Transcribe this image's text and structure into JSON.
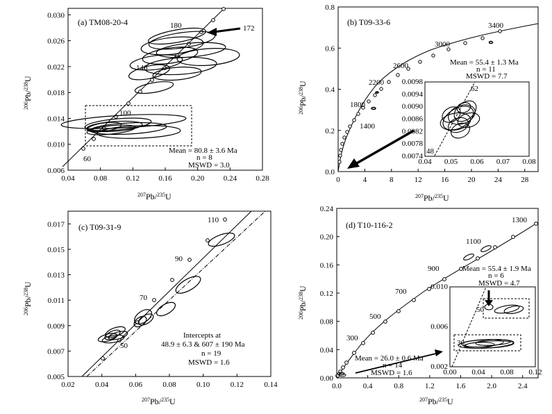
{
  "figure": {
    "panels": [
      {
        "id": "a",
        "label": "(a) TM08-20-4",
        "xaxis": {
          "label": "207Pb/235U",
          "min": 0.04,
          "max": 0.28,
          "ticks": [
            0.04,
            0.08,
            0.12,
            0.16,
            0.2,
            0.24,
            0.28
          ],
          "tick_labels": [
            "0.04",
            "0.08",
            "0.12",
            "0.16",
            "0.20",
            "0.24",
            "0.28"
          ]
        },
        "yaxis": {
          "label": "206Pb/238U",
          "min": 0.006,
          "max": 0.031,
          "ticks": [
            0.006,
            0.01,
            0.014,
            0.018,
            0.022,
            0.026,
            0.03
          ],
          "tick_labels": [
            "0.006",
            "0.010",
            "0.014",
            "0.018",
            "0.022",
            "0.026",
            "0.030"
          ]
        },
        "concordia_ages": [
          "60",
          "100",
          "140",
          "180"
        ],
        "annotations": [
          "172"
        ],
        "stats": [
          "Mean = 80.8 ± 3.6 Ma",
          "n = 8",
          "MSWD = 3.0"
        ]
      },
      {
        "id": "b",
        "label": "(b) T09-33-6",
        "xaxis": {
          "label": "207Pb/235U",
          "min": 0,
          "max": 30,
          "ticks": [
            0,
            4,
            8,
            12,
            16,
            20,
            24,
            28
          ],
          "tick_labels": [
            "0",
            "4",
            "8",
            "12",
            "16",
            "20",
            "24",
            "28"
          ]
        },
        "yaxis": {
          "label": "206Pb/238U",
          "min": 0,
          "max": 0.8,
          "ticks": [
            0,
            0.2,
            0.4,
            0.6,
            0.8
          ],
          "tick_labels": [
            "0.0",
            "0.2",
            "0.4",
            "0.6",
            "0.8"
          ]
        },
        "concordia_ages": [
          "1400",
          "1800",
          "2200",
          "2600",
          "3000",
          "3400"
        ],
        "stats": [
          "Mean = 55.4 ± 1.3  Ma",
          "n = 11",
          "MSWD = 7.7"
        ],
        "inset": {
          "xaxis": {
            "min": 0.04,
            "max": 0.08,
            "tick_labels": [
              "0.04",
              "0.05",
              "0.06",
              "0.07",
              "0.08"
            ]
          },
          "yaxis": {
            "min": 0.0074,
            "max": 0.0098,
            "tick_labels": [
              "0.0074",
              "0.0078",
              "0.0082",
              "0.0086",
              "0.0090",
              "0.0094",
              "0.0098"
            ]
          },
          "ages": [
            "48",
            "62"
          ]
        }
      },
      {
        "id": "c",
        "label": "(c) T09-31-9",
        "xaxis": {
          "label": "207Pb/235U",
          "min": 0.02,
          "max": 0.14,
          "ticks": [
            0.02,
            0.04,
            0.06,
            0.08,
            0.1,
            0.12,
            0.14
          ],
          "tick_labels": [
            "0.02",
            "0.04",
            "0.06",
            "0.08",
            "0.10",
            "0.12",
            "0.14"
          ]
        },
        "yaxis": {
          "label": "206Pb/238U",
          "min": 0.005,
          "max": 0.018,
          "ticks": [
            0.005,
            0.007,
            0.009,
            0.011,
            0.013,
            0.015,
            0.017
          ],
          "tick_labels": [
            "0.005",
            "0.007",
            "0.009",
            "0.011",
            "0.013",
            "0.015",
            "0.017"
          ]
        },
        "concordia_ages": [
          "50",
          "70",
          "90",
          "110"
        ],
        "stats": [
          "Intercepts at",
          "48.9 ± 6.3 & 607 ± 190 Ma",
          "n = 19",
          "MSWD = 1.6"
        ]
      },
      {
        "id": "d",
        "label": "(d) T10-116-2",
        "xaxis": {
          "label": "207Pb/235U",
          "min": 0,
          "max": 2.6,
          "ticks": [
            0,
            0.4,
            0.8,
            1.2,
            1.6,
            2.0,
            2.4
          ],
          "tick_labels": [
            "0.0",
            "0.4",
            "0.8",
            "1.2",
            "1.6",
            "2.0",
            "2.4"
          ]
        },
        "yaxis": {
          "label": "206Pb/238U",
          "min": 0,
          "max": 0.24,
          "ticks": [
            0,
            0.04,
            0.08,
            0.12,
            0.16,
            0.2,
            0.24
          ],
          "tick_labels": [
            "0.00",
            "0.04",
            "0.08",
            "0.12",
            "0.16",
            "0.20",
            "0.24"
          ]
        },
        "concordia_ages": [
          "300",
          "500",
          "700",
          "900",
          "1100",
          "1300"
        ],
        "stats_upper": [
          "Mean = 55.4 ± 1.9 Ma",
          "n = 6",
          "MSWD = 4.7"
        ],
        "stats_lower": [
          "Mean = 26.0 ± 0.6 Ma",
          "n = 14",
          "MSWD = 1.6"
        ],
        "inset": {
          "xaxis": {
            "min": 0,
            "max": 0.12,
            "tick_labels": [
              "0.00",
              "0.04",
              "0.08",
              "0.12"
            ]
          },
          "yaxis": {
            "min": 0.002,
            "max": 0.011,
            "tick_labels": [
              "0.002",
              "0.006",
              "0.010"
            ]
          },
          "ages": [
            "30",
            "50"
          ]
        }
      }
    ]
  },
  "chart_data": [
    {
      "type": "scatter",
      "title": "(a) TM08-20-4",
      "xlabel": "207Pb/235U",
      "ylabel": "206Pb/238U",
      "xlim": [
        0.04,
        0.28
      ],
      "ylim": [
        0.006,
        0.031
      ],
      "concordia": {
        "ages": [
          60,
          100,
          140,
          180
        ]
      },
      "weighted_mean_age_Ma": 80.8,
      "error_Ma": 3.6,
      "n": 8,
      "MSWD": 3.0
    },
    {
      "type": "scatter",
      "title": "(b) T09-33-6",
      "xlabel": "207Pb/235U",
      "ylabel": "206Pb/238U",
      "xlim": [
        0,
        30
      ],
      "ylim": [
        0,
        0.8
      ],
      "concordia": {
        "ages": [
          1400,
          1800,
          2200,
          2600,
          3000,
          3400
        ]
      },
      "weighted_mean_age_Ma": 55.4,
      "error_Ma": 1.3,
      "n": 11,
      "MSWD": 7.7
    },
    {
      "type": "scatter",
      "title": "(c) T09-31-9",
      "xlabel": "207Pb/235U",
      "ylabel": "206Pb/238U",
      "xlim": [
        0.02,
        0.14
      ],
      "ylim": [
        0.005,
        0.018
      ],
      "concordia": {
        "ages": [
          50,
          70,
          90,
          110
        ]
      },
      "lower_intercept_Ma": 48.9,
      "lower_error_Ma": 6.3,
      "upper_intercept_Ma": 607,
      "upper_error_Ma": 190,
      "n": 19,
      "MSWD": 1.6
    },
    {
      "type": "scatter",
      "title": "(d) T10-116-2",
      "xlabel": "207Pb/235U",
      "ylabel": "206Pb/238U",
      "xlim": [
        0,
        2.6
      ],
      "ylim": [
        0,
        0.24
      ],
      "concordia": {
        "ages": [
          300,
          500,
          700,
          900,
          1100,
          1300
        ]
      },
      "weighted_mean_ages": [
        {
          "age_Ma": 55.4,
          "error_Ma": 1.9,
          "n": 6,
          "MSWD": 4.7
        },
        {
          "age_Ma": 26.0,
          "error_Ma": 0.6,
          "n": 14,
          "MSWD": 1.6
        }
      ]
    }
  ]
}
